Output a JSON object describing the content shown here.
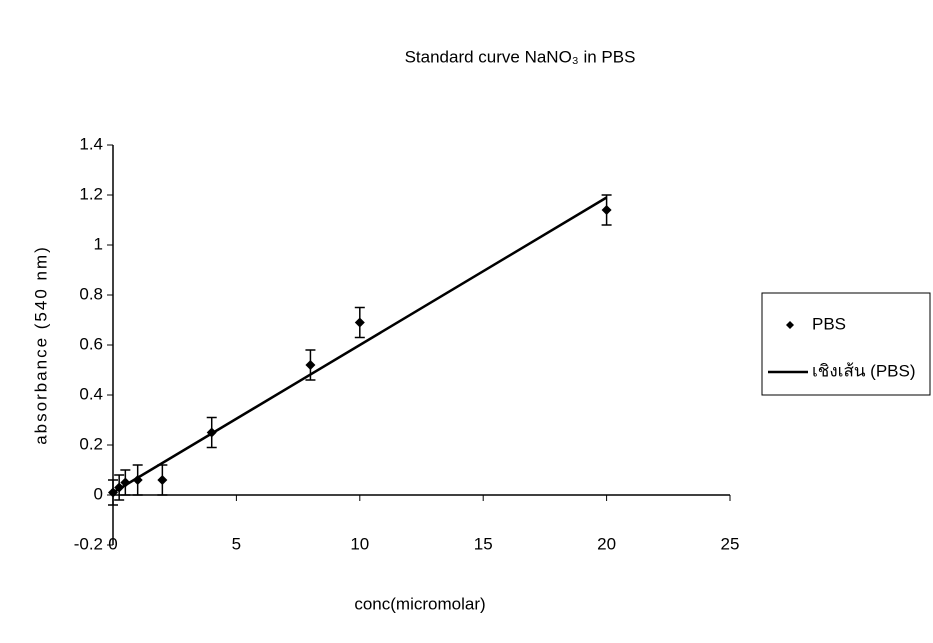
{
  "chart_data": {
    "type": "scatter",
    "title": "Standard curve NaNO₃ in PBS",
    "x_label": "conc(micromolar)",
    "y_label": "absorbance (540 nm)",
    "xlim": [
      0,
      25
    ],
    "xticks": [
      0,
      5,
      10,
      15,
      20,
      25
    ],
    "ylim": [
      -0.2,
      1.4
    ],
    "yticks": [
      -0.2,
      0,
      0.2,
      0.4,
      0.6,
      0.8,
      1,
      1.2,
      1.4
    ],
    "grid": false,
    "legend": "right",
    "series": [
      {
        "name": "PBS",
        "color": "#000000",
        "mode": "markers",
        "x": [
          0,
          0.25,
          0.5,
          1,
          2,
          4,
          8,
          10,
          20
        ],
        "values": [
          0.01,
          0.03,
          0.05,
          0.06,
          0.06,
          0.25,
          0.52,
          0.69,
          1.14
        ],
        "errors": [
          0.05,
          0.05,
          0.05,
          0.06,
          0.06,
          0.06,
          0.06,
          0.06,
          0.06
        ]
      },
      {
        "name": "เชิงเส้น (PBS)",
        "color": "#000000",
        "mode": "line",
        "x": [
          0,
          20
        ],
        "values": [
          0.01,
          1.19
        ]
      }
    ]
  }
}
